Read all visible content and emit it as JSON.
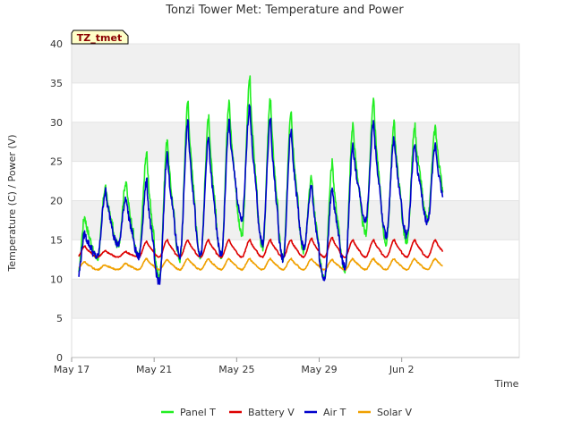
{
  "chart_data": {
    "type": "line",
    "title": "Tonzi Tower Met: Temperature and Power",
    "badge": "TZ_tmet",
    "xlabel": "Time",
    "ylabel": "Temperature (C) / Power (V)",
    "ylim": [
      0,
      40
    ],
    "yticks": [
      0,
      5,
      10,
      15,
      20,
      25,
      30,
      35,
      40
    ],
    "xlim": [
      0,
      21.7
    ],
    "xticks": [
      {
        "day": 0,
        "label": "May 17"
      },
      {
        "day": 4,
        "label": "May 21"
      },
      {
        "day": 8,
        "label": "May 25"
      },
      {
        "day": 12,
        "label": "May 29"
      },
      {
        "day": 16,
        "label": "Jun 2"
      }
    ],
    "legend_position": "bottom",
    "series": [
      {
        "name": "Panel T",
        "color": "#22ee22",
        "peaks": [
          18,
          21.8,
          22.5,
          26,
          28,
          32.7,
          30.5,
          32.7,
          35.8,
          33,
          31.7,
          23,
          25,
          29.8,
          33.1,
          29.9,
          29.5
        ],
        "troughs": [
          9.2,
          12.6,
          14.3,
          12.8,
          10.2,
          12.5,
          12.8,
          13,
          15.5,
          13.8,
          12.5,
          13.5,
          10,
          11,
          15.8,
          14.5,
          14.5,
          17.5
        ]
      },
      {
        "name": "Battery V",
        "color": "#dd0000",
        "peaks": [
          14.2,
          13.6,
          13.5,
          14.8,
          15,
          15,
          15,
          15,
          15,
          15,
          15,
          15.2,
          15.3,
          15,
          15,
          15,
          15
        ],
        "troughs": [
          12.7,
          12.8,
          12.8,
          12.8,
          12.8,
          12.8,
          12.8,
          12.8,
          12.8,
          12.8,
          12.8,
          12.8,
          12.8,
          12.8,
          12.8,
          12.8,
          12.8,
          12.8
        ]
      },
      {
        "name": "Air T",
        "color": "#0000cc",
        "peaks": [
          15.8,
          21.2,
          20.5,
          22.4,
          26,
          30,
          28,
          30,
          32.2,
          30.4,
          29,
          22,
          21.8,
          27,
          30,
          28,
          27.2
        ],
        "troughs": [
          9.5,
          12.8,
          14.3,
          12.8,
          9.5,
          13,
          13,
          13,
          17.5,
          14.5,
          12.5,
          14,
          10,
          11.5,
          17.5,
          15.5,
          15.5,
          17.2
        ]
      },
      {
        "name": "Solar V",
        "color": "#f0a000",
        "peaks": [
          12.2,
          11.8,
          12,
          12.6,
          12.5,
          12.6,
          12.6,
          12.6,
          12.6,
          12.6,
          12.6,
          12.6,
          12.5,
          12.6,
          12.6,
          12.6,
          12.6
        ],
        "troughs": [
          11.3,
          11.2,
          11.2,
          11.2,
          11.2,
          11.2,
          11.2,
          11.2,
          11.2,
          11.2,
          11.2,
          11.2,
          11.2,
          11.2,
          11.2,
          11.2,
          11.2,
          11.2
        ]
      }
    ]
  }
}
